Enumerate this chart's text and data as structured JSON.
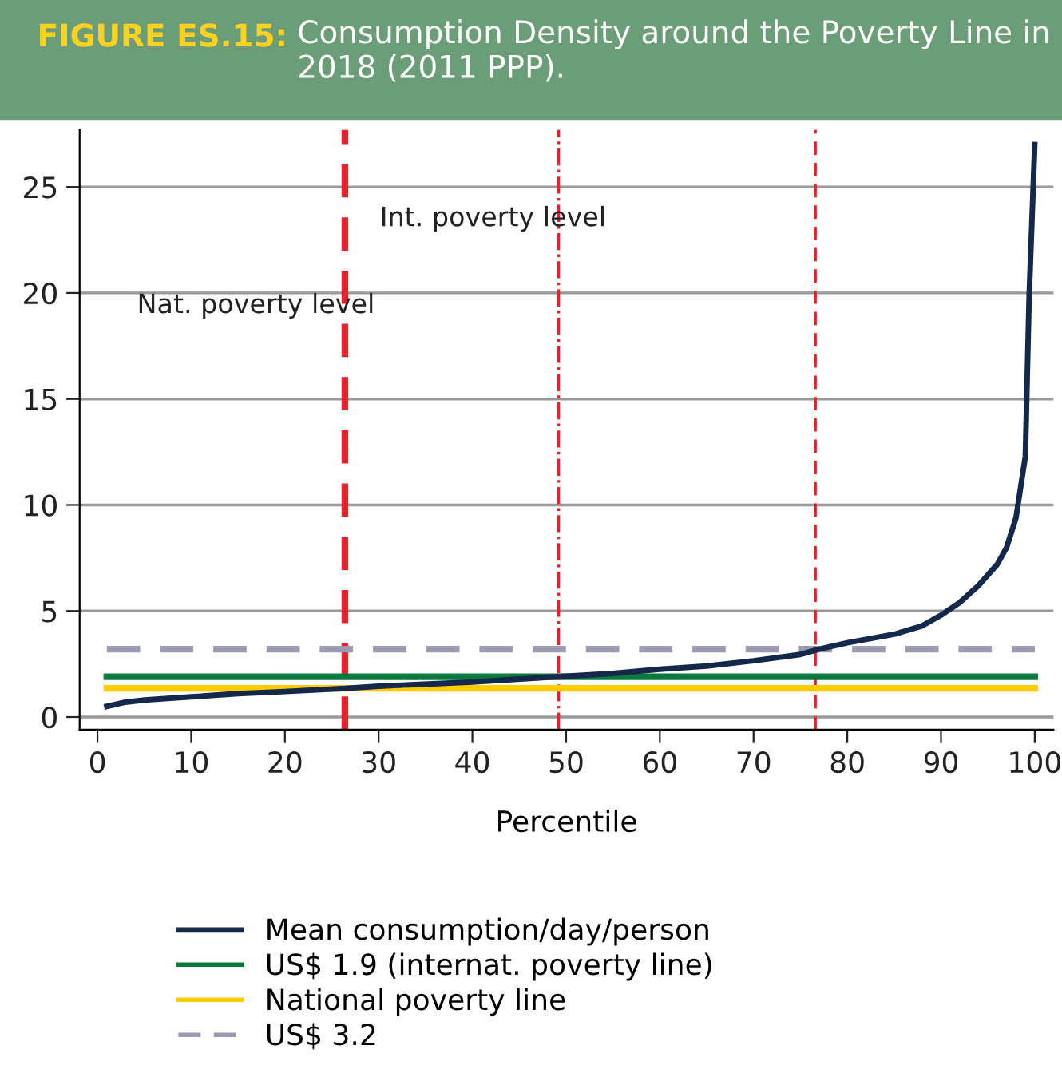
{
  "chart_data": {
    "type": "line",
    "title": "FIGURE ES.15:",
    "subtitle": "Consumption Density around the Poverty Line in 2018 (2011 PPP).",
    "xlabel": "Percentile",
    "xlim": [
      -1.9,
      102
    ],
    "xticks": [
      0,
      10,
      20,
      30,
      40,
      50,
      60,
      70,
      80,
      90,
      100
    ],
    "ylim": [
      -0.6,
      27.7
    ],
    "yticks": [
      0,
      5,
      10,
      15,
      20,
      25
    ],
    "grid": "y",
    "legend": "bottom",
    "marker": "none",
    "series": [
      {
        "name": "Mean consumption/day/person",
        "color": "#14284b",
        "line_style": "solid",
        "x": [
          1,
          3,
          5,
          10,
          15,
          20,
          26.4,
          30,
          40,
          49.2,
          55,
          60,
          65,
          70,
          75,
          77,
          80,
          85,
          88,
          90,
          92,
          94,
          96,
          97,
          98,
          99,
          99.4,
          100
        ],
        "values": [
          0.5,
          0.7,
          0.8,
          0.95,
          1.1,
          1.2,
          1.35,
          1.45,
          1.65,
          1.9,
          2.05,
          2.25,
          2.4,
          2.65,
          2.95,
          3.2,
          3.5,
          3.9,
          4.3,
          4.8,
          5.4,
          6.2,
          7.2,
          8.0,
          9.4,
          12.3,
          19.8,
          27.0
        ]
      },
      {
        "name": "US$ 1.9 (internat. poverty line)",
        "color": "#0a7a3c",
        "line_style": "solid",
        "x": [
          1,
          100
        ],
        "values": [
          1.9,
          1.9
        ]
      },
      {
        "name": "National poverty line",
        "color": "#ffcc00",
        "line_style": "solid",
        "x": [
          1,
          100
        ],
        "values": [
          1.35,
          1.35
        ]
      },
      {
        "name": "US$ 3.2",
        "color": "#9a9ab0",
        "line_style": "dashed",
        "x": [
          1,
          100
        ],
        "values": [
          3.2,
          3.2
        ]
      }
    ],
    "ref_lines": [
      {
        "axis": "x",
        "value": 26.4,
        "label": "Nat. poverty level",
        "color": "#e8202a",
        "line_style": "dashed"
      },
      {
        "axis": "x",
        "value": 49.2,
        "label": "Int. poverty level",
        "color": "#e8202a",
        "line_style": "dashdot"
      },
      {
        "axis": "x",
        "value": 76.6,
        "color": "#e8202a",
        "line_style": "dashed"
      }
    ]
  }
}
